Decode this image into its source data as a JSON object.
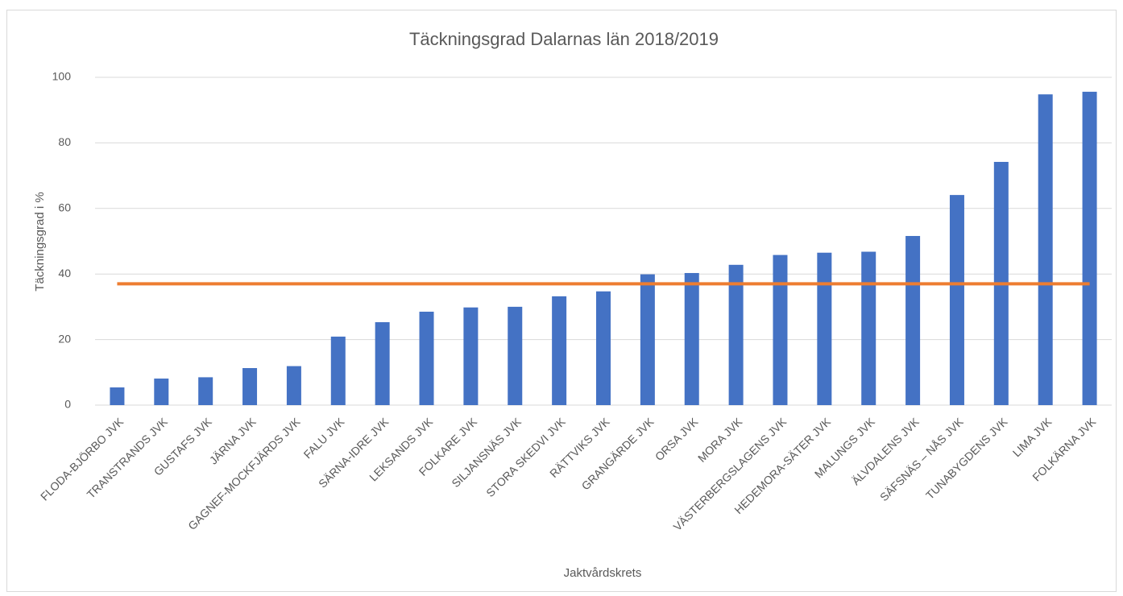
{
  "chart_data": {
    "type": "bar",
    "title": "Täckningsgrad Dalarnas län 2018/2019",
    "y_label": "Täckningsgrad i %",
    "x_label": "Jaktvårdskrets",
    "categories": [
      "FLODA-BJÖRBO JVK",
      "TRANSTRANDS JVK",
      "GUSTAFS JVK",
      "JÄRNA JVK",
      "GAGNEF-MOCKFJÄRDS JVK",
      "FALU JVK",
      "SÄRNA-IDRE JVK",
      "LEKSANDS JVK",
      "FOLKARE JVK",
      "SILJANSNÄS JVK",
      "STORA SKEDVI JVK",
      "RÄTTVIKS JVK",
      "GRANGÄRDE JVK",
      "ORSA JVK",
      "MORA JVK",
      "VÄSTERBERGSLAGENS JVK",
      "HEDEMORA-SÄTER JVK",
      "MALUNGS JVK",
      "ÄLVDALENS JVK",
      "SÄFSNÄS – NÅS JVK",
      "TUNABYGDENS JVK",
      "LIMA JVK",
      "FOLKÄRNA JVK"
    ],
    "series": [
      {
        "type": "bar",
        "color": "#4472c4",
        "values": [
          5.4,
          8.1,
          8.5,
          11.3,
          11.9,
          20.9,
          25.3,
          28.5,
          29.8,
          30,
          33.2,
          34.7,
          39.9,
          40.3,
          42.8,
          45.8,
          46.5,
          46.8,
          51.6,
          64.1,
          74.2,
          94.8,
          95.6
        ]
      },
      {
        "type": "line",
        "color": "#ed7d31",
        "values": [
          37,
          37,
          37,
          37,
          37,
          37,
          37,
          37,
          37,
          37,
          37,
          37,
          37,
          37,
          37,
          37,
          37,
          37,
          37,
          37,
          37,
          37,
          37
        ]
      }
    ],
    "ylim": [
      0,
      100
    ],
    "yticks": [
      0,
      20,
      40,
      60,
      80,
      100
    ],
    "grid": true
  }
}
